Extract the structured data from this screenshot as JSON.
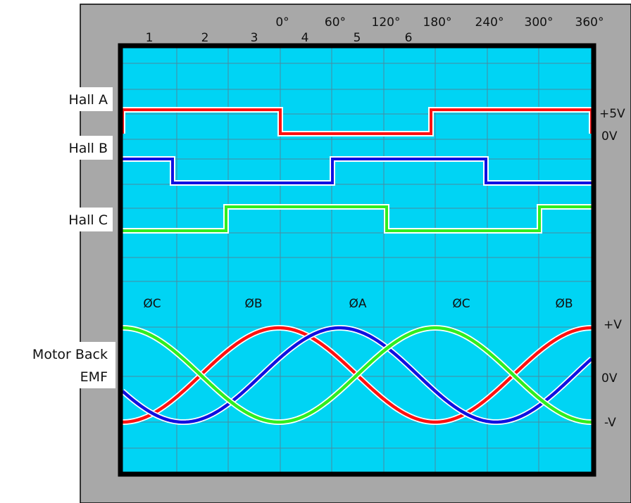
{
  "diagram": {
    "step_numbers": [
      "1",
      "2",
      "3",
      "4",
      "5",
      "6"
    ],
    "angle_labels": [
      "0°",
      "60°",
      "120°",
      "180°",
      "240°",
      "300°",
      "360°"
    ],
    "signal_labels": {
      "hall_a": "Hall A",
      "hall_b": "Hall B",
      "hall_c": "Hall C",
      "back_emf_line1": "Motor Back",
      "back_emf_line2": "EMF"
    },
    "voltage_labels": {
      "hall_high": "+5V",
      "hall_low": "0V",
      "emf_high": "+V",
      "emf_zero": "0V",
      "emf_low": "-V"
    },
    "phase_labels": [
      "ØC",
      "ØB",
      "ØA",
      "ØC",
      "ØB"
    ],
    "colors": {
      "frame": "#a8a8a8",
      "screen": "#00d4f4",
      "grid": "#4a8aa0",
      "hall_a": "#ff1010",
      "hall_b": "#1010e0",
      "hall_c": "#30ee20",
      "phase_a": "#ff1010",
      "phase_b": "#1010e0",
      "phase_c": "#30ee20"
    }
  }
}
